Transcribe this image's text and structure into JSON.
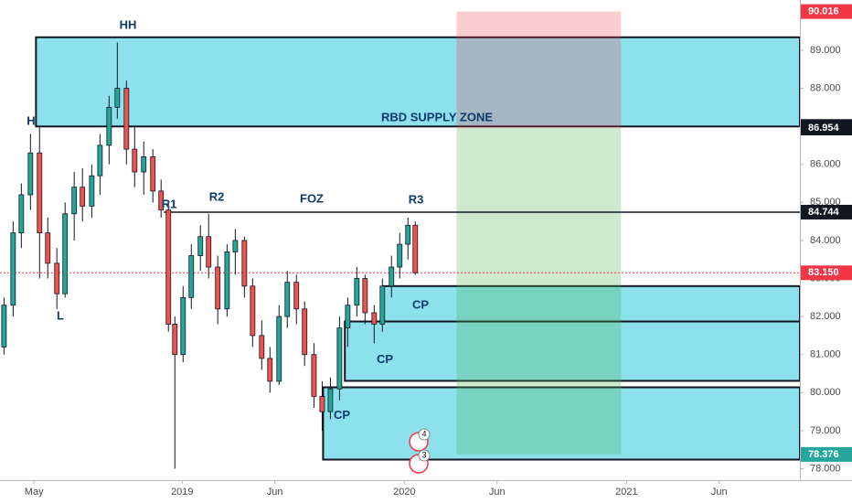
{
  "chart_data": {
    "type": "candlestick",
    "xlim": [
      2018.18,
      2021.78
    ],
    "ylim": [
      77.7,
      90.32
    ],
    "xticks": [
      {
        "value": 2018.333,
        "label": "May"
      },
      2019,
      {
        "value": 2019.417,
        "label": "Jun"
      },
      2020,
      {
        "value": 2020.417,
        "label": "Jun"
      },
      2021,
      {
        "value": 2021.417,
        "label": "Jun"
      }
    ],
    "yticks": [
      {
        "value": 78,
        "label": "78.000"
      },
      {
        "value": 79,
        "label": "79.000"
      },
      {
        "value": 80,
        "label": "80.000"
      },
      {
        "value": 81,
        "label": "81.000"
      },
      {
        "value": 82,
        "label": "82.000"
      },
      {
        "value": 83,
        "label": "83.000"
      },
      {
        "value": 84,
        "label": "84.000"
      },
      {
        "value": 85,
        "label": "85.000"
      },
      {
        "value": 86,
        "label": "86.000"
      },
      {
        "value": 87,
        "label": "87.000"
      },
      {
        "value": 88,
        "label": "88.000"
      },
      {
        "value": 89,
        "label": "89.000"
      }
    ],
    "up_color": "#26a69a",
    "down_color": "#ef5350",
    "x": [
      2018.198,
      2018.239,
      2018.276,
      2018.317,
      2018.358,
      2018.395,
      2018.436,
      2018.473,
      2018.514,
      2018.551,
      2018.593,
      2018.63,
      2018.671,
      2018.708,
      2018.749,
      2018.786,
      2018.827,
      2018.868,
      2018.905,
      2018.938,
      2018.967,
      2019.004,
      2019.041,
      2019.082,
      2019.119,
      2019.16,
      2019.202,
      2019.239,
      2019.28,
      2019.317,
      2019.358,
      2019.395,
      2019.436,
      2019.473,
      2019.514,
      2019.551,
      2019.593,
      2019.63,
      2019.667,
      2019.708,
      2019.745,
      2019.786,
      2019.823,
      2019.864,
      2019.901,
      2019.942,
      2019.979,
      2020.016,
      2020.049
    ],
    "open": [
      81.2,
      82.3,
      84.2,
      85.2,
      86.3,
      84.2,
      83.4,
      82.6,
      84.7,
      85.4,
      84.9,
      85.7,
      86.5,
      87.5,
      88.0,
      86.4,
      85.8,
      86.2,
      85.3,
      84.8,
      81.8,
      81.0,
      82.5,
      83.6,
      84.1,
      83.3,
      82.2,
      83.7,
      84.0,
      82.8,
      81.5,
      80.9,
      80.3,
      82.0,
      82.9,
      82.2,
      81.0,
      79.9,
      79.5,
      80.1,
      81.7,
      82.3,
      83.0,
      82.1,
      81.8,
      82.8,
      83.3,
      83.9,
      84.4
    ],
    "high": [
      82.5,
      84.5,
      85.5,
      86.8,
      87.0,
      84.6,
      83.8,
      85.0,
      85.8,
      85.9,
      86.0,
      86.8,
      87.8,
      89.2,
      88.2,
      87.0,
      86.6,
      86.4,
      85.6,
      85.0,
      82.0,
      82.8,
      83.9,
      84.4,
      84.7,
      83.6,
      83.9,
      84.3,
      84.1,
      83.0,
      81.9,
      81.2,
      82.3,
      83.2,
      83.1,
      82.4,
      81.3,
      80.3,
      80.4,
      82.0,
      82.5,
      83.3,
      83.1,
      82.3,
      83.0,
      83.6,
      84.2,
      84.6,
      84.5
    ],
    "low": [
      81.0,
      82.0,
      83.8,
      84.8,
      83.0,
      83.0,
      82.2,
      82.5,
      84.0,
      84.5,
      84.6,
      85.2,
      86.0,
      87.2,
      86.0,
      85.4,
      85.2,
      85.0,
      84.6,
      81.6,
      78.0,
      80.8,
      82.2,
      83.2,
      83.0,
      81.8,
      82.0,
      83.1,
      82.5,
      81.2,
      80.6,
      80.0,
      80.2,
      81.7,
      81.8,
      80.7,
      79.6,
      79.0,
      79.3,
      79.8,
      81.2,
      82.0,
      81.8,
      81.3,
      81.6,
      82.5,
      83.0,
      83.5,
      83.1
    ],
    "close": [
      82.3,
      84.2,
      85.2,
      86.3,
      84.2,
      83.4,
      82.6,
      84.7,
      85.4,
      84.9,
      85.7,
      86.5,
      87.5,
      88.0,
      86.4,
      85.8,
      86.2,
      85.3,
      84.8,
      81.8,
      81.0,
      82.5,
      83.6,
      84.1,
      83.3,
      82.2,
      83.7,
      84.0,
      82.8,
      81.5,
      80.9,
      80.3,
      82.0,
      82.9,
      82.2,
      81.0,
      79.9,
      79.5,
      80.1,
      81.7,
      82.3,
      83.0,
      82.1,
      81.8,
      82.8,
      83.3,
      83.9,
      84.4,
      83.15
    ],
    "zones": [
      {
        "label": "RBD  SUPPLY  ZONE",
        "x_from": 2018.342,
        "y_range": [
          86.996,
          89.34
        ]
      },
      {
        "label": "CP",
        "x_from": 2019.905,
        "y_range": [
          81.87,
          82.8
        ]
      },
      {
        "label": "CP",
        "x_from": 2019.732,
        "y_range": [
          80.31,
          81.87
        ]
      },
      {
        "label": "CP",
        "x_from": 2019.634,
        "y_range": [
          78.24,
          80.14
        ]
      }
    ],
    "zone_color": "#00bcd4",
    "position": {
      "x_range": [
        2020.235,
        2020.975
      ],
      "stop": 90.016,
      "entry": 86.954,
      "target": 78.376,
      "loss_color": "#f23645",
      "profit_color": "#4caf50"
    },
    "price_labels": [
      {
        "value": 90.016,
        "color": "#f23645"
      },
      {
        "value": 86.996,
        "color": "#131722"
      },
      {
        "value": 86.954,
        "color": "#131722"
      },
      {
        "value": 84.744,
        "color": "#131722",
        "line": "solid",
        "line_from": 2018.918
      },
      {
        "value": 83.15,
        "label": "83.150",
        "color": "#f23645",
        "line": "dotted",
        "line_from": 2018.18
      },
      {
        "value": 78.376,
        "color": "#26a69a"
      }
    ],
    "annotations": [
      "HH",
      "H",
      "L",
      "R1",
      "R2",
      "FOZ",
      "R3"
    ],
    "event_badges": [
      "4",
      "3"
    ]
  }
}
